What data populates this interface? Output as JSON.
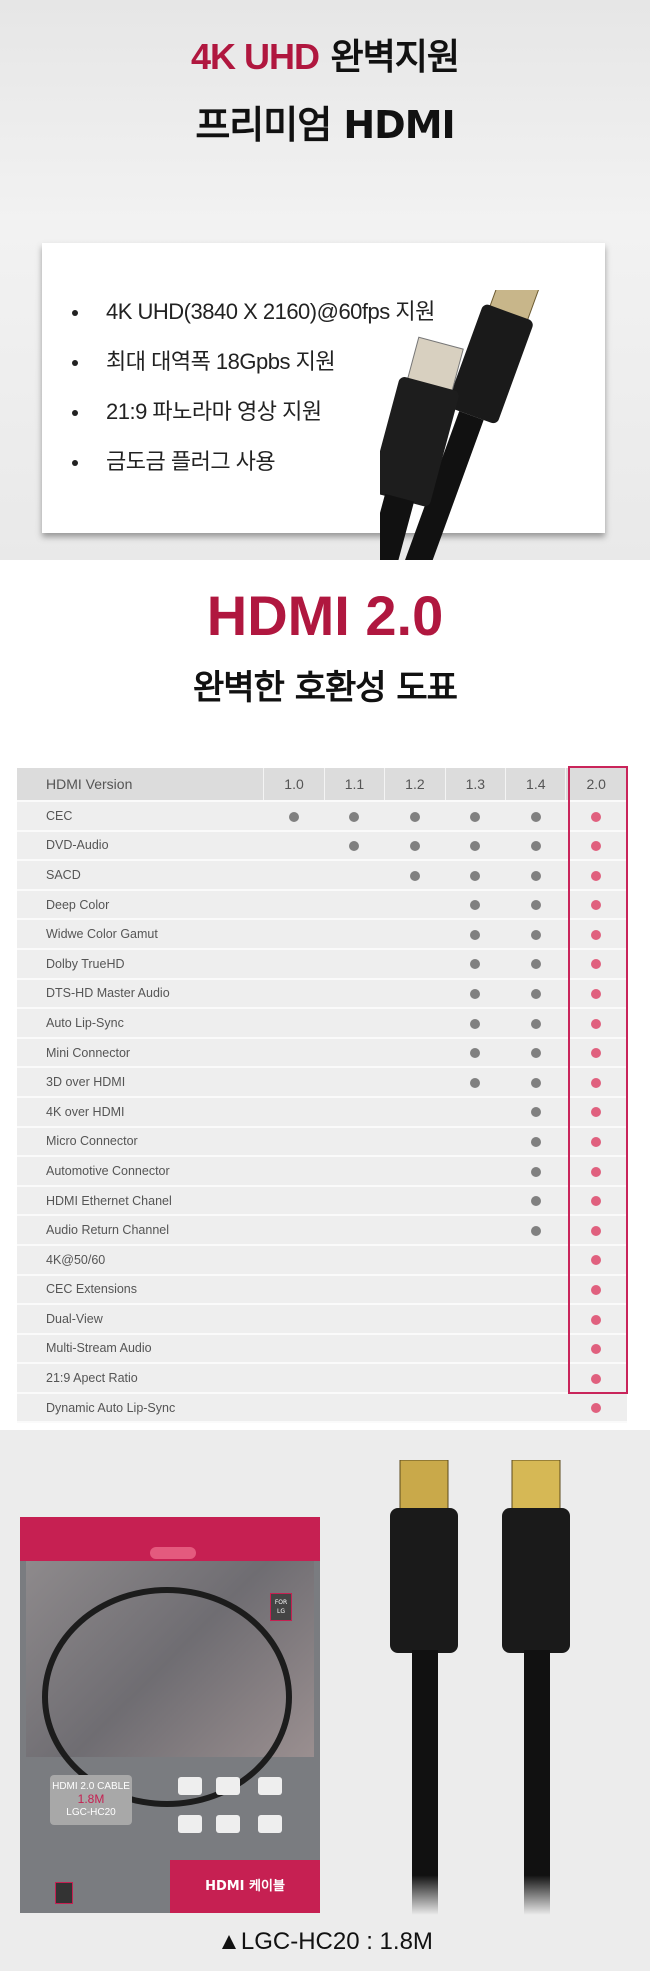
{
  "hero": {
    "title_accent": "4K UHD",
    "title_rest": " 완벽지원",
    "subtitle": "프리미엄 HDMI",
    "features": [
      "4K UHD(3840 X 2160)@60fps 지원",
      "최대 대역폭 18Gpbs 지원",
      "21:9 파노라마 영상 지원",
      "금도금 플러그 사용"
    ]
  },
  "compat": {
    "heading": "HDMI 2.0",
    "subheading": "완벽한 호환성 도표",
    "header_label": "HDMI Version",
    "versions": [
      "1.0",
      "1.1",
      "1.2",
      "1.3",
      "1.4",
      "2.0"
    ],
    "highlight_version": "2.0",
    "rows": [
      {
        "feature": "CEC",
        "since": "1.0"
      },
      {
        "feature": "DVD-Audio",
        "since": "1.1"
      },
      {
        "feature": "SACD",
        "since": "1.2"
      },
      {
        "feature": "Deep Color",
        "since": "1.3"
      },
      {
        "feature": "Widwe Color Gamut",
        "since": "1.3"
      },
      {
        "feature": "Dolby TrueHD",
        "since": "1.3"
      },
      {
        "feature": "DTS-HD Master Audio",
        "since": "1.3"
      },
      {
        "feature": "Auto Lip-Sync",
        "since": "1.3"
      },
      {
        "feature": "Mini Connector",
        "since": "1.3"
      },
      {
        "feature": "3D over HDMI",
        "since": "1.3"
      },
      {
        "feature": "4K over HDMI",
        "since": "1.4"
      },
      {
        "feature": "Micro Connector",
        "since": "1.4"
      },
      {
        "feature": "Automotive Connector",
        "since": "1.4"
      },
      {
        "feature": "HDMI Ethernet Chanel",
        "since": "1.4"
      },
      {
        "feature": "Audio Return Channel",
        "since": "1.4"
      },
      {
        "feature": "4K@50/60",
        "since": "2.0"
      },
      {
        "feature": "CEC Extensions",
        "since": "2.0"
      },
      {
        "feature": "Dual-View",
        "since": "2.0"
      },
      {
        "feature": "Multi-Stream Audio",
        "since": "2.0"
      },
      {
        "feature": "21:9 Apect Ratio",
        "since": "2.0"
      },
      {
        "feature": "Dynamic Auto Lip-Sync",
        "since": "2.0"
      }
    ],
    "colors": {
      "dot": "#808080",
      "dot_highlight": "#e0607e",
      "highlight_border": "#c9245a"
    }
  },
  "package": {
    "for_lg": "FOR LG",
    "label_line1": "HDMI 2.0 CABLE",
    "label_line2": "1.8M",
    "label_line3": "LGC-HC20",
    "band": "HDMI 케이블"
  },
  "caption": {
    "marker": "▲",
    "model": "LGC-HC20",
    "length": "1.8M",
    "text": "▲LGC-HC20 : 1.8M"
  },
  "brand_color": "#b0173f"
}
